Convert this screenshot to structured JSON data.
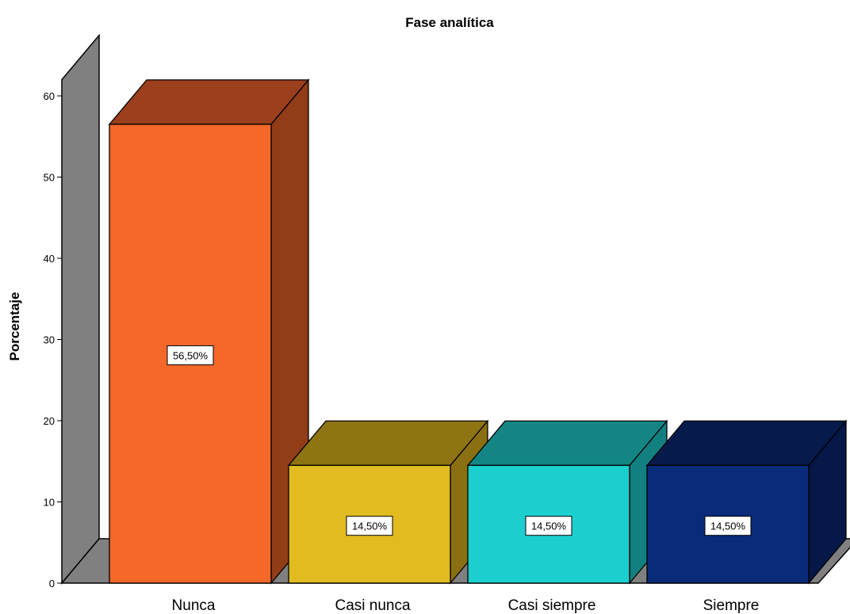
{
  "chart_data": {
    "type": "bar",
    "style": "3d",
    "title": "Fase analítica",
    "xlabel": "",
    "ylabel": "Porcentaje",
    "ylim": [
      0,
      62
    ],
    "yticks": [
      0,
      10,
      20,
      30,
      40,
      50,
      60
    ],
    "categories": [
      "Nunca",
      "Casi nunca",
      "Casi siempre",
      "Siempre"
    ],
    "values": [
      56.5,
      14.5,
      14.5,
      14.5
    ],
    "data_labels": [
      "56,50%",
      "14,50%",
      "14,50%",
      "14,50%"
    ],
    "colors": [
      {
        "front": "#f4682a",
        "top": "#9b3f1c",
        "side": "#923c18"
      },
      {
        "front": "#e1bb20",
        "top": "#8f7413",
        "side": "#8a7012"
      },
      {
        "front": "#1ccfcf",
        "top": "#148585",
        "side": "#128080"
      },
      {
        "front": "#0a2a7a",
        "top": "#061a4c",
        "side": "#051847"
      }
    ],
    "wall_color": "#808080",
    "grid": false
  }
}
